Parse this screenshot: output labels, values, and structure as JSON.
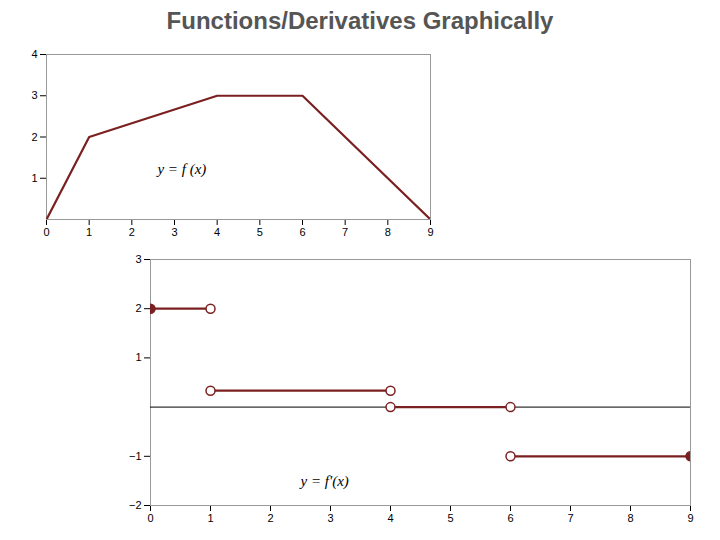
{
  "chart_data": [
    {
      "type": "line",
      "title": "Functions/Derivatives Graphically",
      "x": [
        0,
        1,
        4,
        6,
        9
      ],
      "values": [
        0,
        2,
        3,
        3,
        0
      ],
      "color": "#7b2020",
      "xlim": [
        0,
        9
      ],
      "ylim": [
        0,
        4
      ],
      "xticks": [
        0,
        1,
        2,
        3,
        4,
        5,
        6,
        7,
        8,
        9
      ],
      "yticks": [
        1,
        2,
        3,
        4
      ],
      "annotations": [
        {
          "text": "y = f (x)",
          "x": 2.6,
          "y": 1.1
        }
      ]
    },
    {
      "type": "step",
      "segments": [
        {
          "x_start": 0,
          "x_end": 1,
          "y": 2.0,
          "open_start": false,
          "open_end": true
        },
        {
          "x_start": 1,
          "x_end": 4,
          "y": 0.333,
          "open_start": true,
          "open_end": true
        },
        {
          "x_start": 4,
          "x_end": 6,
          "y": 0.0,
          "open_start": true,
          "open_end": true
        },
        {
          "x_start": 6,
          "x_end": 9,
          "y": -1.0,
          "open_start": true,
          "open_end": false
        }
      ],
      "color": "#7b2020",
      "xlim": [
        0,
        9
      ],
      "ylim": [
        -2,
        3
      ],
      "xticks": [
        0,
        1,
        2,
        3,
        4,
        5,
        6,
        7,
        8,
        9
      ],
      "yticks": [
        -2,
        -1,
        1,
        2,
        3
      ],
      "annotations": [
        {
          "text": "y = f'(x)",
          "x": 2.5,
          "y": -1.6
        }
      ]
    }
  ]
}
